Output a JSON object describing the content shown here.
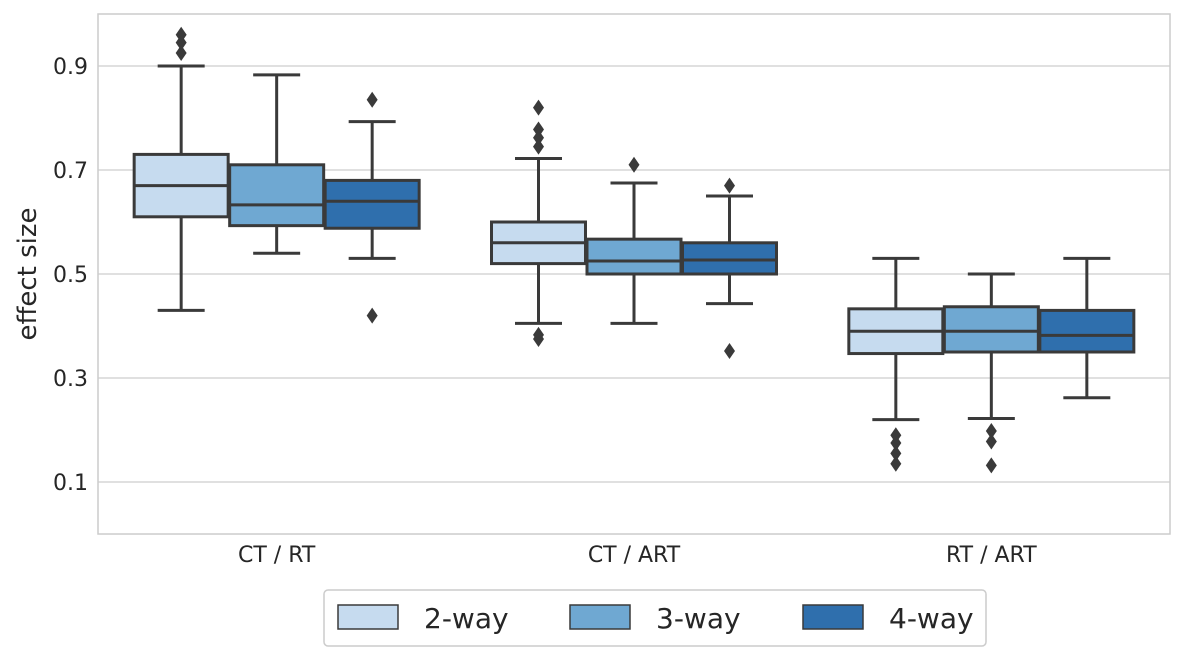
{
  "chart_data": {
    "type": "box",
    "title": "",
    "xlabel": "",
    "ylabel": "effect size",
    "ylim": [
      0.0,
      1.0
    ],
    "yticks": [
      0.1,
      0.3,
      0.5,
      0.7,
      0.9
    ],
    "grid": "horizontal",
    "legend_position": "bottom-center",
    "categories": [
      "CT / RT",
      "CT / ART",
      "RT / ART"
    ],
    "series": [
      {
        "name": "2-way",
        "color": "#c6dbef",
        "boxes": [
          {
            "whisker_low": 0.43,
            "q1": 0.61,
            "median": 0.67,
            "q3": 0.73,
            "whisker_high": 0.9,
            "outliers": [
              0.925,
              0.945,
              0.96
            ]
          },
          {
            "whisker_low": 0.405,
            "q1": 0.52,
            "median": 0.56,
            "q3": 0.6,
            "whisker_high": 0.722,
            "outliers": [
              0.375,
              0.383,
              0.745,
              0.762,
              0.778,
              0.82
            ]
          },
          {
            "whisker_low": 0.22,
            "q1": 0.347,
            "median": 0.39,
            "q3": 0.433,
            "whisker_high": 0.53,
            "outliers": [
              0.135,
              0.155,
              0.175,
              0.19
            ]
          }
        ]
      },
      {
        "name": "3-way",
        "color": "#6fa8d2",
        "boxes": [
          {
            "whisker_low": 0.54,
            "q1": 0.593,
            "median": 0.633,
            "q3": 0.71,
            "whisker_high": 0.883,
            "outliers": []
          },
          {
            "whisker_low": 0.405,
            "q1": 0.5,
            "median": 0.525,
            "q3": 0.567,
            "whisker_high": 0.675,
            "outliers": [
              0.71
            ]
          },
          {
            "whisker_low": 0.222,
            "q1": 0.35,
            "median": 0.39,
            "q3": 0.437,
            "whisker_high": 0.5,
            "outliers": [
              0.132,
              0.178,
              0.198
            ]
          }
        ]
      },
      {
        "name": "4-way",
        "color": "#2f6fad",
        "boxes": [
          {
            "whisker_low": 0.53,
            "q1": 0.588,
            "median": 0.64,
            "q3": 0.68,
            "whisker_high": 0.793,
            "outliers": [
              0.42,
              0.835
            ]
          },
          {
            "whisker_low": 0.443,
            "q1": 0.5,
            "median": 0.527,
            "q3": 0.56,
            "whisker_high": 0.65,
            "outliers": [
              0.352,
              0.67
            ]
          },
          {
            "whisker_low": 0.262,
            "q1": 0.35,
            "median": 0.382,
            "q3": 0.43,
            "whisker_high": 0.53,
            "outliers": []
          }
        ]
      }
    ]
  }
}
